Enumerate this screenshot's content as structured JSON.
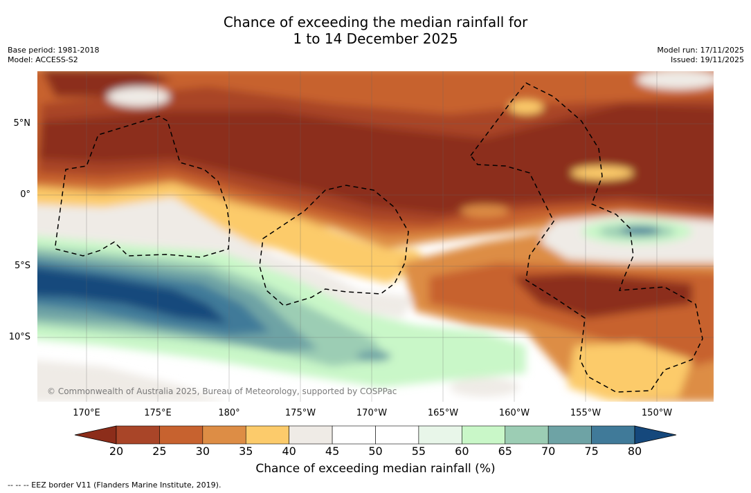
{
  "title": "Chance of exceeding the median rainfall for\n1 to 14 December 2025",
  "meta_left": [
    "Base period: 1981-2018",
    "Model: ACCESS-S2"
  ],
  "meta_right": [
    "Model run: 17/11/2025",
    "Issued: 19/11/2025"
  ],
  "lat_labels": [
    "5°N",
    "0°",
    "5°S",
    "10°S"
  ],
  "lon_labels": [
    "170°E",
    "175°E",
    "180°",
    "175°W",
    "170°W",
    "165°W",
    "160°W",
    "155°W",
    "150°W"
  ],
  "copyright": "© Commonwealth of Australia 2025, Bureau of Meteorology, supported by COSPPac",
  "colorbar": {
    "ticks": [
      "20",
      "25",
      "30",
      "35",
      "40",
      "45",
      "50",
      "55",
      "60",
      "65",
      "70",
      "75",
      "80"
    ],
    "colors": [
      "#8c2d1a",
      "#a94528",
      "#c7622f",
      "#dd8d45",
      "#fccb6b",
      "#efebe6",
      "#ffffff",
      "#ffffff",
      "#e8f6e9",
      "#c9f7c8",
      "#9ccdb4",
      "#6ea3a5",
      "#407a99",
      "#15487c"
    ],
    "label": "Chance of exceeding median rainfall (%)"
  },
  "footnote": "--  --  -- EEZ border V11 (Flanders Marine Institute, 2019)."
}
